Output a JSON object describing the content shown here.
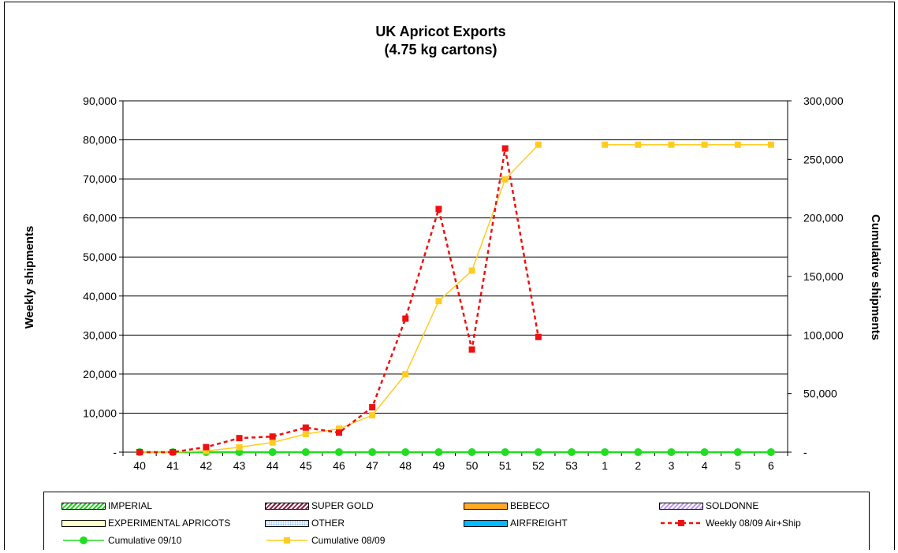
{
  "chart_data": {
    "type": "line",
    "title": "UK Apricot Exports",
    "subtitle": "(4.75 kg cartons)",
    "ylabel": "Weekly shipments",
    "y2label": "Cumulative shipments",
    "categories": [
      "40",
      "41",
      "42",
      "43",
      "44",
      "45",
      "46",
      "47",
      "48",
      "49",
      "50",
      "51",
      "52",
      "53",
      "1",
      "2",
      "3",
      "4",
      "5",
      "6"
    ],
    "ylim": [
      0,
      90000
    ],
    "y_ticks": [
      "-",
      "10,000",
      "20,000",
      "30,000",
      "40,000",
      "50,000",
      "60,000",
      "70,000",
      "80,000",
      "90,000"
    ],
    "y2lim": [
      0,
      300000
    ],
    "y2_ticks": [
      "-",
      "50,000",
      "100,000",
      "150,000",
      "200,000",
      "250,000",
      "300,000"
    ],
    "grid": true,
    "legend_position": "bottom",
    "series": [
      {
        "name": "Weekly 08/09 Air+Ship",
        "axis": "left",
        "color": "#ee1111",
        "style": "dashed",
        "marker": "square",
        "values": [
          0,
          0,
          1300,
          3600,
          4000,
          6300,
          5000,
          11500,
          34200,
          62300,
          26300,
          77800,
          29500,
          null,
          null,
          null,
          null,
          null,
          null,
          null
        ]
      },
      {
        "name": "Cumulative 09/10",
        "axis": "right",
        "color": "#22dd22",
        "style": "solid",
        "marker": "circle",
        "values": [
          0,
          0,
          0,
          0,
          0,
          0,
          0,
          0,
          0,
          0,
          0,
          0,
          0,
          0,
          0,
          0,
          0,
          0,
          0,
          0
        ]
      },
      {
        "name": "Cumulative 08/09",
        "axis": "right",
        "color": "#ffcc22",
        "style": "solid",
        "marker": "square",
        "values": [
          0,
          0,
          1000,
          4200,
          8300,
          15500,
          20000,
          31500,
          66500,
          129000,
          155000,
          233000,
          262500,
          null,
          262500,
          262500,
          262500,
          262500,
          262500,
          262500
        ]
      }
    ]
  },
  "legend": [
    {
      "label": "IMPERIAL",
      "kind": "hatch",
      "color": "#22cc22"
    },
    {
      "label": "SUPER GOLD",
      "kind": "hatch",
      "color": "#882244"
    },
    {
      "label": "BEBECO",
      "kind": "solid",
      "color": "#ffaa22"
    },
    {
      "label": "SOLDONNE",
      "kind": "hatch",
      "color": "#bb99ee"
    },
    {
      "label": "EXPERIMENTAL  APRICOTS",
      "kind": "solid",
      "color": "#ffffcc"
    },
    {
      "label": "OTHER",
      "kind": "dots",
      "color": "#88bbee"
    },
    {
      "label": "AIRFREIGHT",
      "kind": "solid",
      "color": "#00bbff"
    },
    {
      "label": "Weekly 08/09 Air+Ship",
      "kind": "line",
      "color": "#ee1111",
      "style": "dashed",
      "marker": "square"
    },
    {
      "label": "Cumulative 09/10",
      "kind": "line",
      "color": "#22dd22",
      "style": "solid",
      "marker": "circle"
    },
    {
      "label": "Cumulative 08/09",
      "kind": "line",
      "color": "#ffcc22",
      "style": "solid",
      "marker": "square"
    }
  ]
}
